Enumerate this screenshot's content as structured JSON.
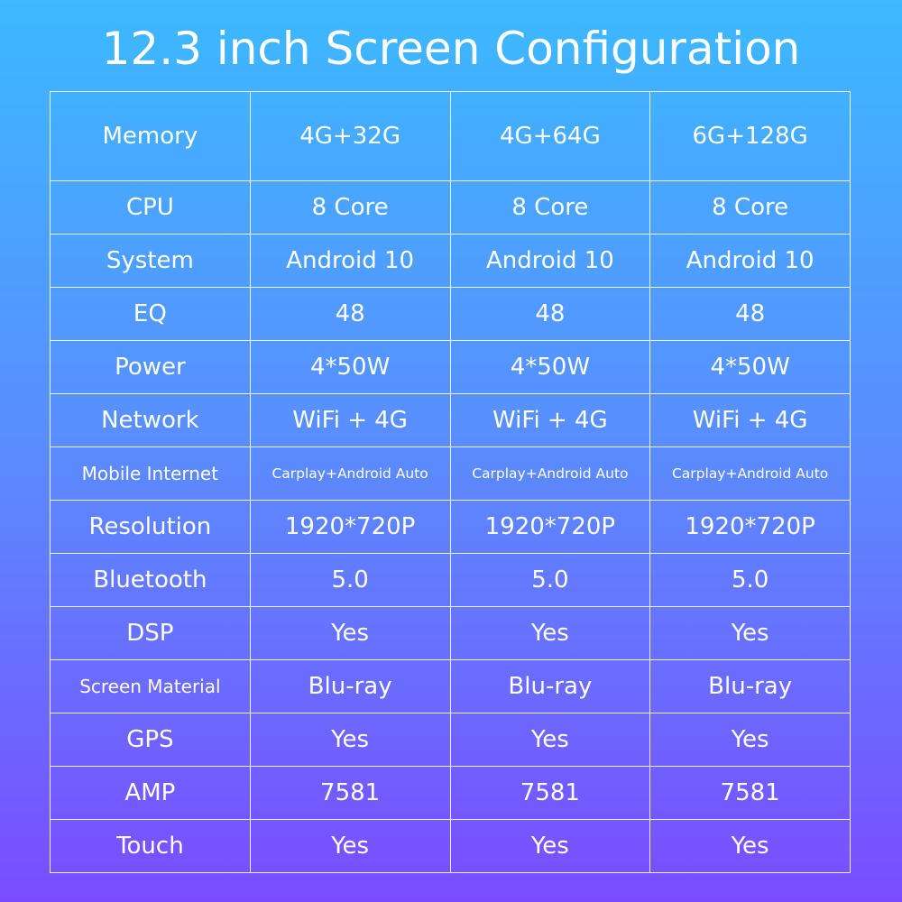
{
  "header": {
    "title": "12.3 inch Screen Configuration"
  },
  "table": {
    "rows": [
      [
        "Memory",
        "4G+32G",
        "4G+64G",
        "6G+128G"
      ],
      [
        "CPU",
        "8 Core",
        "8 Core",
        "8 Core"
      ],
      [
        "System",
        "Android 10",
        "Android 10",
        "Android 10"
      ],
      [
        "EQ",
        "48",
        "48",
        "48"
      ],
      [
        "Power",
        "4*50W",
        "4*50W",
        "4*50W"
      ],
      [
        "Network",
        "WiFi + 4G",
        "WiFi + 4G",
        "WiFi + 4G"
      ],
      [
        "Mobile Internet",
        "Carplay+Android Auto",
        "Carplay+Android Auto",
        "Carplay+Android Auto"
      ],
      [
        "Resolution",
        "1920*720P",
        "1920*720P",
        "1920*720P"
      ],
      [
        "Bluetooth",
        "5.0",
        "5.0",
        "5.0"
      ],
      [
        "DSP",
        "Yes",
        "Yes",
        "Yes"
      ],
      [
        "Screen Material",
        "Blu-ray",
        "Blu-ray",
        "Blu-ray"
      ],
      [
        "GPS",
        "Yes",
        "Yes",
        "Yes"
      ],
      [
        "AMP",
        "7581",
        "7581",
        "7581"
      ],
      [
        "Touch",
        "Yes",
        "Yes",
        "Yes"
      ]
    ]
  }
}
